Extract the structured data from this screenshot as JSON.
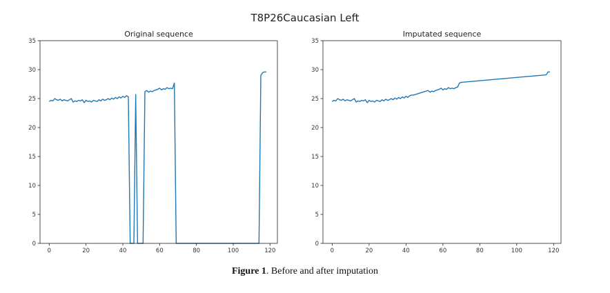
{
  "figure": {
    "suptitle": "T8P26Caucasian Left",
    "caption_label": "Figure 1",
    "caption_text": ". Before and after imputation"
  },
  "chart_data": [
    {
      "type": "line",
      "title": "Original sequence",
      "xlabel": "",
      "ylabel": "",
      "xlim": [
        -5,
        124
      ],
      "ylim": [
        0,
        35
      ],
      "xticks": [
        0,
        20,
        40,
        60,
        80,
        100,
        120
      ],
      "yticks": [
        0,
        5,
        10,
        15,
        20,
        25,
        30,
        35
      ],
      "grid": false,
      "color": "#1f77b4",
      "series": [
        {
          "x": [
            0,
            1,
            2,
            3,
            4,
            5,
            6,
            7,
            8,
            9,
            10,
            11,
            12,
            13,
            14,
            15,
            16,
            17,
            18,
            19,
            20,
            21,
            22,
            23,
            24,
            25,
            26,
            27,
            28,
            29,
            30,
            31,
            32,
            33,
            34,
            35,
            36,
            37,
            38,
            39,
            40,
            41,
            42,
            43,
            44,
            45,
            46,
            47,
            48,
            49,
            50,
            51,
            52,
            53,
            54,
            55,
            56,
            57,
            58,
            59,
            60,
            61,
            62,
            63,
            64,
            65,
            66,
            67,
            68,
            69,
            70,
            71,
            114,
            115,
            116,
            117,
            118
          ],
          "y": [
            24.5,
            24.7,
            24.6,
            25.0,
            24.8,
            24.7,
            24.9,
            24.6,
            24.8,
            24.7,
            24.6,
            24.8,
            25.0,
            24.4,
            24.6,
            24.5,
            24.7,
            24.6,
            24.8,
            24.3,
            24.7,
            24.5,
            24.6,
            24.4,
            24.7,
            24.6,
            24.5,
            24.8,
            24.6,
            24.9,
            24.7,
            24.8,
            25.0,
            24.8,
            25.1,
            24.9,
            25.2,
            25.0,
            25.3,
            25.1,
            25.4,
            25.2,
            25.5,
            25.3,
            0,
            0,
            0,
            25.7,
            0,
            0,
            0,
            0,
            26.2,
            26.4,
            26.1,
            26.3,
            26.2,
            26.4,
            26.5,
            26.6,
            26.8,
            26.5,
            26.7,
            26.6,
            26.9,
            26.7,
            26.8,
            26.7,
            27.7,
            0,
            0,
            0,
            0,
            29.0,
            29.5,
            29.6,
            29.6
          ]
        }
      ]
    },
    {
      "type": "line",
      "title": "Imputated sequence",
      "xlabel": "",
      "ylabel": "",
      "xlim": [
        -5,
        124
      ],
      "ylim": [
        0,
        35
      ],
      "xticks": [
        0,
        20,
        40,
        60,
        80,
        100,
        120
      ],
      "yticks": [
        0,
        5,
        10,
        15,
        20,
        25,
        30,
        35
      ],
      "grid": false,
      "color": "#1f77b4",
      "series": [
        {
          "x": [
            0,
            1,
            2,
            3,
            4,
            5,
            6,
            7,
            8,
            9,
            10,
            11,
            12,
            13,
            14,
            15,
            16,
            17,
            18,
            19,
            20,
            21,
            22,
            23,
            24,
            25,
            26,
            27,
            28,
            29,
            30,
            31,
            32,
            33,
            34,
            35,
            36,
            37,
            38,
            39,
            40,
            41,
            42,
            43,
            44,
            46,
            48,
            50,
            52,
            53,
            54,
            55,
            56,
            57,
            58,
            59,
            60,
            61,
            62,
            63,
            64,
            65,
            66,
            67,
            68,
            69,
            70,
            116,
            117,
            118
          ],
          "y": [
            24.5,
            24.7,
            24.6,
            25.0,
            24.8,
            24.7,
            24.9,
            24.6,
            24.8,
            24.7,
            24.6,
            24.8,
            25.0,
            24.4,
            24.6,
            24.5,
            24.7,
            24.6,
            24.8,
            24.3,
            24.7,
            24.5,
            24.6,
            24.4,
            24.7,
            24.6,
            24.5,
            24.8,
            24.6,
            24.9,
            24.7,
            24.8,
            25.0,
            24.8,
            25.1,
            24.9,
            25.2,
            25.0,
            25.3,
            25.1,
            25.4,
            25.2,
            25.5,
            25.6,
            25.6,
            25.8,
            26.0,
            26.2,
            26.4,
            26.1,
            26.3,
            26.2,
            26.4,
            26.5,
            26.6,
            26.8,
            26.5,
            26.7,
            26.6,
            26.9,
            26.7,
            26.8,
            26.7,
            26.9,
            27.0,
            27.7,
            27.8,
            29.1,
            29.6,
            29.6
          ]
        }
      ]
    }
  ]
}
